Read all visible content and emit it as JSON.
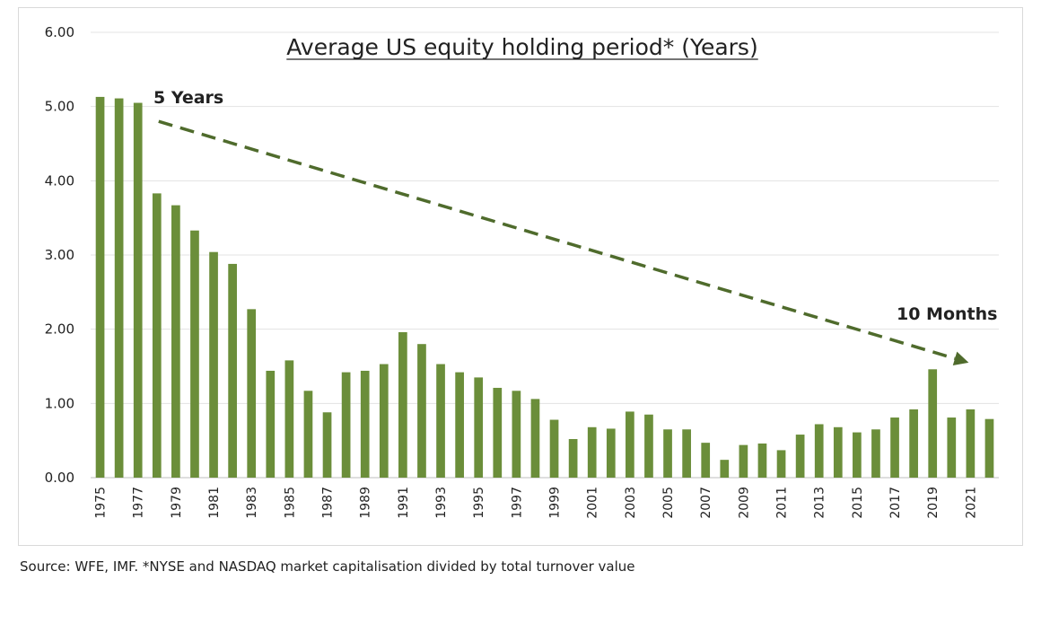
{
  "chart_data": {
    "type": "bar",
    "title": "Average US equity holding period* (Years)",
    "xlabel": "",
    "ylabel": "",
    "ylim": [
      0,
      6
    ],
    "yticks": [
      "0.00",
      "1.00",
      "2.00",
      "3.00",
      "4.00",
      "5.00",
      "6.00"
    ],
    "grid": true,
    "categories": [
      "1975",
      "1976",
      "1977",
      "1978",
      "1979",
      "1980",
      "1981",
      "1982",
      "1983",
      "1984",
      "1985",
      "1986",
      "1987",
      "1988",
      "1989",
      "1990",
      "1991",
      "1992",
      "1993",
      "1994",
      "1995",
      "1996",
      "1997",
      "1998",
      "1999",
      "2000",
      "2001",
      "2002",
      "2003",
      "2004",
      "2005",
      "2006",
      "2007",
      "2008",
      "2009",
      "2010",
      "2011",
      "2012",
      "2013",
      "2014",
      "2015",
      "2016",
      "2017",
      "2018",
      "2019",
      "2020",
      "2021",
      "2022"
    ],
    "xtick_labels": [
      "1975",
      "1977",
      "1979",
      "1981",
      "1983",
      "1985",
      "1987",
      "1989",
      "1991",
      "1993",
      "1995",
      "1997",
      "1999",
      "2001",
      "2003",
      "2005",
      "2007",
      "2009",
      "2011",
      "2013",
      "2015",
      "2017",
      "2019",
      "2021"
    ],
    "values": [
      5.13,
      5.11,
      5.05,
      3.83,
      3.67,
      3.33,
      3.04,
      2.88,
      2.27,
      1.44,
      1.58,
      1.17,
      0.88,
      1.42,
      1.44,
      1.53,
      1.96,
      1.8,
      1.53,
      1.42,
      1.35,
      1.21,
      1.17,
      1.06,
      0.78,
      0.52,
      0.68,
      0.66,
      0.89,
      0.85,
      0.65,
      0.65,
      0.47,
      0.24,
      0.44,
      0.46,
      0.37,
      0.58,
      0.72,
      0.68,
      0.61,
      0.65,
      0.81,
      0.92,
      1.46,
      0.81,
      0.92,
      0.79
    ],
    "bar_color": "#6b8e3a",
    "arrow_color": "#4f6b2c",
    "annotations": [
      "5 Years",
      "10 Months"
    ],
    "trend_arrow": {
      "from": {
        "x": "1978",
        "y": 4.8
      },
      "to": {
        "x": "2021",
        "y": 1.55
      }
    }
  },
  "footer": {
    "source": "Source: WFE, IMF. *NYSE and NASDAQ market capitalisation divided by total turnover value"
  }
}
